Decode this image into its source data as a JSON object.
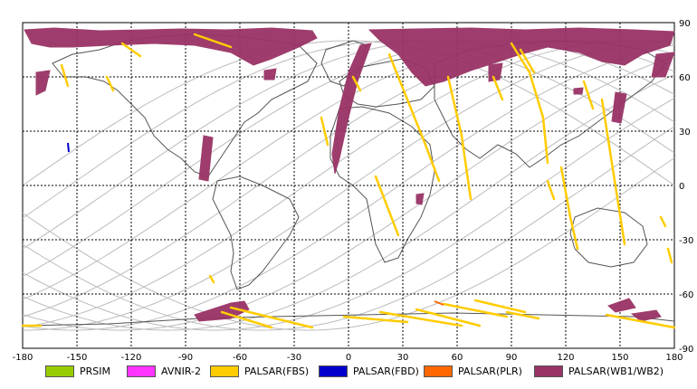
{
  "map": {
    "lon_ticks": [
      "-180",
      "-150",
      "-120",
      "-90",
      "-60",
      "-30",
      "0",
      "30",
      "60",
      "90",
      "120",
      "150",
      "180"
    ],
    "lat_ticks": [
      "90",
      "60",
      "30",
      "0",
      "-30",
      "-60",
      "-90"
    ],
    "lon_range": [
      -180,
      180
    ],
    "lat_range": [
      -90,
      90
    ],
    "grid": "dotted",
    "land_outline_color": "#555555",
    "orbit_color": "#bbbbbb"
  },
  "legend": [
    {
      "label": "PRSIM",
      "color": "#99cc00"
    },
    {
      "label": "AVNIR-2",
      "color": "#ff33ff"
    },
    {
      "label": "PALSAR(FBS)",
      "color": "#ffcc00"
    },
    {
      "label": "PALSAR(FBD)",
      "color": "#0000cc"
    },
    {
      "label": "PALSAR(PLR)",
      "color": "#ff6600"
    },
    {
      "label": "PALSAR(WB1/WB2)",
      "color": "#993366"
    }
  ],
  "colors": {
    "wb": "#993366",
    "fbs": "#ffcc00",
    "fbd": "#0000cc"
  }
}
